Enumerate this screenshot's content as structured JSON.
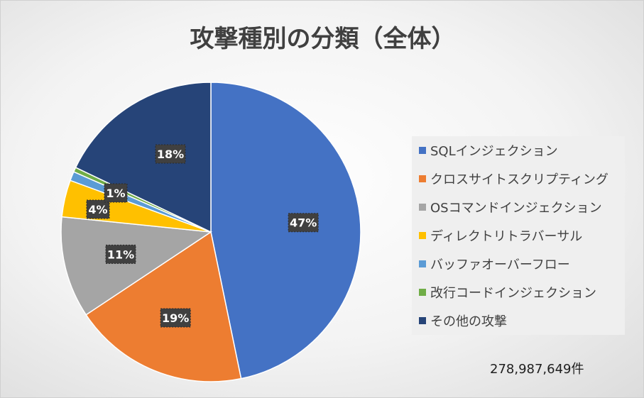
{
  "chart_data": {
    "type": "pie",
    "title": "攻撃種別の分類（全体）",
    "categories": [
      "SQLインジェクション",
      "クロスサイトスクリプティング",
      "OSコマンドインジェクション",
      "ディレクトリトラバーサル",
      "バッファオーバーフロー",
      "改行コードインジェクション",
      "その他の攻撃"
    ],
    "values": [
      47,
      19,
      11,
      4,
      1,
      0.5,
      18
    ],
    "data_labels": [
      "47%",
      "19%",
      "11%",
      "4%",
      "1%",
      "",
      "18%"
    ],
    "colors": [
      "#4472C4",
      "#ED7D31",
      "#A5A5A5",
      "#FFC000",
      "#5B9BD5",
      "#70AD47",
      "#264478"
    ],
    "legend_position": "right",
    "annotation": "278,987,649件"
  }
}
